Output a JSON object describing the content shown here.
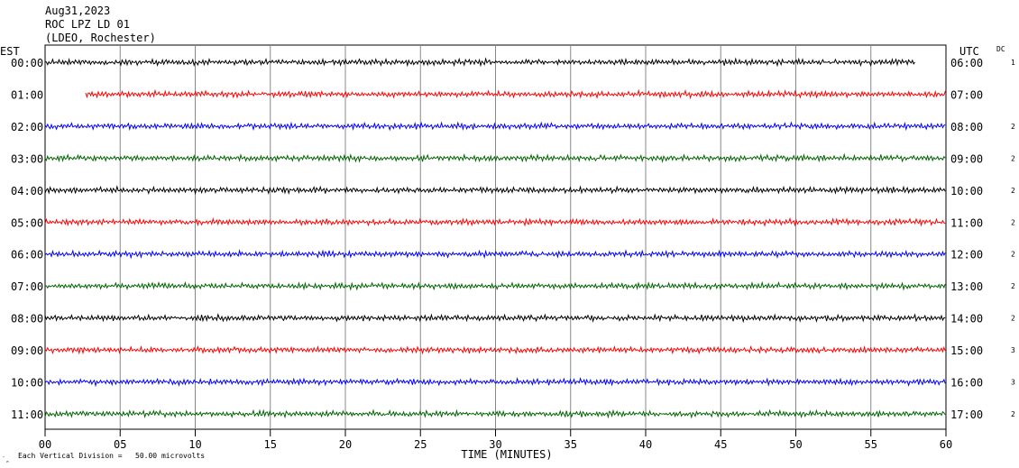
{
  "header": {
    "date": "Aug31,2023",
    "station": "ROC LPZ LD 01",
    "network": "(LDEO, Rochester)"
  },
  "left_axis_label": "EST",
  "right_axis_label": "UTC",
  "dc_label": "DC",
  "footer": {
    "corner_mark": "′̪",
    "scale_text": "Each Vertical Division =   50.00 microvolts"
  },
  "chart_data": {
    "type": "line",
    "title": "",
    "xlabel": "TIME (MINUTES)",
    "ylabel": "",
    "xlim": [
      0,
      60
    ],
    "x_ticks": [
      "00",
      "05",
      "10",
      "15",
      "20",
      "25",
      "30",
      "35",
      "40",
      "45",
      "50",
      "55",
      "60"
    ],
    "vertical_division_microvolts": 50.0,
    "grid": true,
    "trace_colors": [
      "#000000",
      "#ff0000",
      "#0000ff",
      "#006400"
    ],
    "traces": [
      {
        "est": "00:00",
        "utc": "06:00",
        "dc": "1",
        "start_min": 0,
        "end_min": 58,
        "color": "#000000"
      },
      {
        "est": "01:00",
        "utc": "07:00",
        "dc": "",
        "start_min": 2.7,
        "end_min": 60,
        "color": "#ff0000"
      },
      {
        "est": "02:00",
        "utc": "08:00",
        "dc": "2",
        "start_min": 0,
        "end_min": 60,
        "color": "#0000ff"
      },
      {
        "est": "03:00",
        "utc": "09:00",
        "dc": "2",
        "start_min": 0,
        "end_min": 60,
        "color": "#006400"
      },
      {
        "est": "04:00",
        "utc": "10:00",
        "dc": "2",
        "start_min": 0,
        "end_min": 60,
        "color": "#000000"
      },
      {
        "est": "05:00",
        "utc": "11:00",
        "dc": "2",
        "start_min": 0,
        "end_min": 60,
        "color": "#ff0000"
      },
      {
        "est": "06:00",
        "utc": "12:00",
        "dc": "2",
        "start_min": 0,
        "end_min": 60,
        "color": "#0000ff"
      },
      {
        "est": "07:00",
        "utc": "13:00",
        "dc": "2",
        "start_min": 0,
        "end_min": 60,
        "color": "#006400"
      },
      {
        "est": "08:00",
        "utc": "14:00",
        "dc": "2",
        "start_min": 0,
        "end_min": 60,
        "color": "#000000"
      },
      {
        "est": "09:00",
        "utc": "15:00",
        "dc": "3",
        "start_min": 0,
        "end_min": 60,
        "color": "#ff0000"
      },
      {
        "est": "10:00",
        "utc": "16:00",
        "dc": "3",
        "start_min": 0,
        "end_min": 60,
        "color": "#0000ff"
      },
      {
        "est": "11:00",
        "utc": "17:00",
        "dc": "2",
        "start_min": 0,
        "end_min": 60,
        "color": "#006400"
      }
    ]
  }
}
